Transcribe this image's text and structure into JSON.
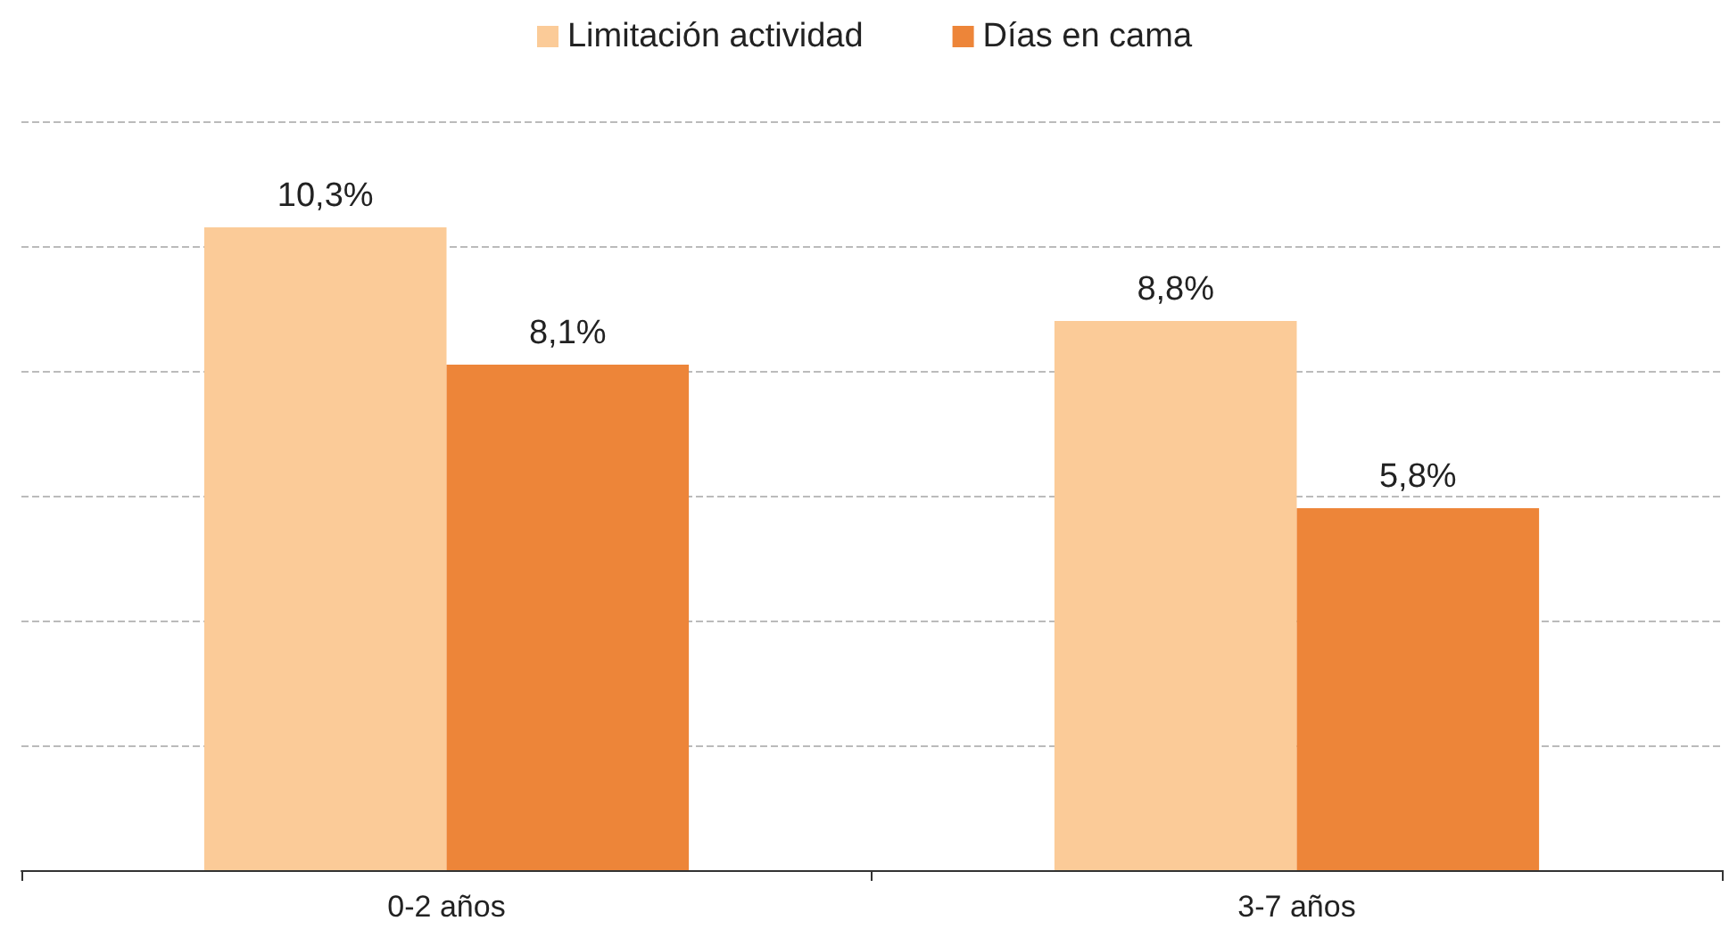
{
  "chart_data": {
    "type": "bar",
    "categories": [
      "0-2 años",
      "3-7 años"
    ],
    "series": [
      {
        "name": "Limitación actividad",
        "color": "#fbcb98",
        "values": [
          10.3,
          8.8
        ],
        "value_labels": [
          "10,3%",
          "8,8%"
        ]
      },
      {
        "name": "Días en cama",
        "color": "#ed8539",
        "values": [
          8.1,
          5.8
        ],
        "value_labels": [
          "8,1%",
          "5,8%"
        ]
      }
    ],
    "ylim": [
      0,
      12
    ],
    "yticks": [
      0,
      2,
      4,
      6,
      8,
      10,
      12
    ],
    "tick_labels": "x",
    "grid": "y",
    "legend": "top"
  }
}
